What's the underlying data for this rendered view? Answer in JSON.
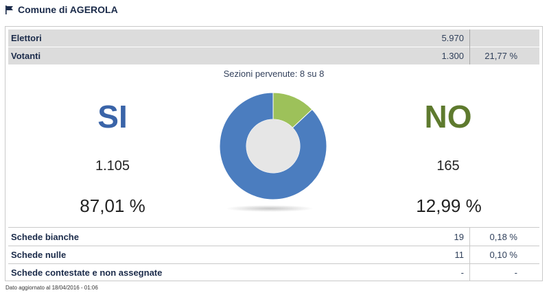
{
  "header": {
    "title": "Comune di AGEROLA",
    "icon": "flag-icon"
  },
  "stats": {
    "elettori": {
      "label": "Elettori",
      "value": "5.970",
      "pct": ""
    },
    "votanti": {
      "label": "Votanti",
      "value": "1.300",
      "pct": "21,77 %"
    }
  },
  "sezioni": "Sezioni pervenute: 8 su 8",
  "results": {
    "si": {
      "label": "SI",
      "votes": "1.105",
      "pct": "87,01 %",
      "color": "#3a64a8"
    },
    "no": {
      "label": "NO",
      "votes": "165",
      "pct": "12,99 %",
      "color": "#5e7a2e"
    }
  },
  "chart_data": {
    "type": "pie",
    "categories": [
      "SI",
      "NO"
    ],
    "values": [
      87.01,
      12.99
    ],
    "colors": [
      "#4b7dbf",
      "#9dc15a"
    ],
    "hole": true
  },
  "bottom_rows": [
    {
      "label": "Schede bianche",
      "value": "19",
      "pct": "0,18 %"
    },
    {
      "label": "Schede nulle",
      "value": "11",
      "pct": "0,10 %"
    },
    {
      "label": "Schede contestate e non assegnate",
      "value": "-",
      "pct": "-"
    }
  ],
  "footer": "Dato aggiornato al 18/04/2016 - 01:06"
}
